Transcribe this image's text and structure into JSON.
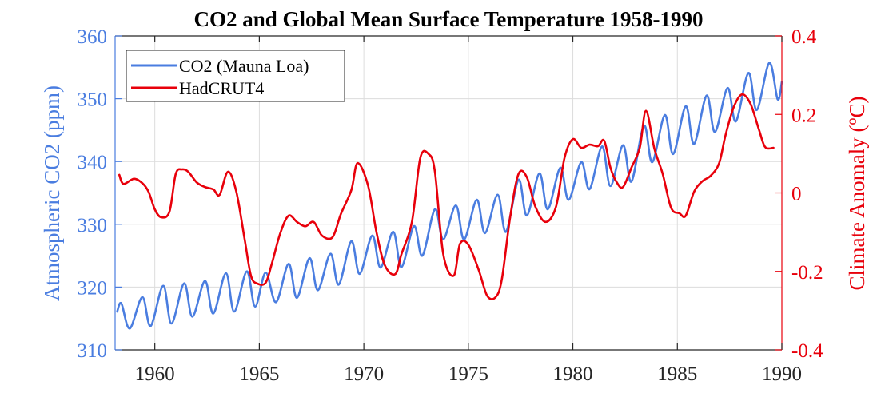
{
  "chart_data": {
    "type": "line",
    "title": "CO2 and Global Mean Surface Temperature 1958-1990",
    "xlabel": "",
    "xlim": [
      1958.1,
      1990
    ],
    "xticks": [
      1960,
      1965,
      1970,
      1975,
      1980,
      1985,
      1990
    ],
    "xtick_labels": [
      "1960",
      "1965",
      "1970",
      "1975",
      "1980",
      "1985",
      "1990"
    ],
    "grid": true,
    "legend": {
      "placement": "top-left",
      "entries": [
        "CO2 (Mauna Loa)",
        "HadCRUT4"
      ]
    },
    "y_left": {
      "label": "Atmospheric CO2 (ppm)",
      "ylim": [
        310,
        360
      ],
      "ticks": [
        310,
        320,
        330,
        340,
        350,
        360
      ],
      "tick_labels": [
        "310",
        "320",
        "330",
        "340",
        "350",
        "360"
      ],
      "color": "#4a7de0"
    },
    "y_right": {
      "label_main": "Climate Anomaly (",
      "label_sup": "o",
      "label_end": "C)",
      "ylim": [
        -0.4,
        0.4
      ],
      "ticks": [
        -0.4,
        -0.2,
        0,
        0.2,
        0.4
      ],
      "tick_labels": [
        "-0.4",
        "-0.2",
        "0",
        "0.2",
        "0.4"
      ],
      "color": "#e8000b"
    },
    "series": [
      {
        "name": "CO2 (Mauna Loa)",
        "axis": "left",
        "color": "#4a7de0",
        "x": [
          1958.2,
          1958.4,
          1958.8,
          1959.4,
          1959.8,
          1960.4,
          1960.8,
          1961.4,
          1961.8,
          1962.4,
          1962.8,
          1963.4,
          1963.8,
          1964.4,
          1964.8,
          1965.3,
          1965.8,
          1966.4,
          1966.8,
          1967.4,
          1967.8,
          1968.4,
          1968.8,
          1969.4,
          1969.8,
          1970.4,
          1970.8,
          1971.4,
          1971.8,
          1972.4,
          1972.8,
          1973.4,
          1973.8,
          1974.4,
          1974.8,
          1975.4,
          1975.8,
          1976.4,
          1976.8,
          1977.4,
          1977.8,
          1978.4,
          1978.8,
          1979.4,
          1979.8,
          1980.4,
          1980.8,
          1981.4,
          1981.8,
          1982.4,
          1982.8,
          1983.4,
          1983.8,
          1984.4,
          1984.8,
          1985.4,
          1985.8,
          1986.4,
          1986.8,
          1987.4,
          1987.8,
          1988.4,
          1988.8,
          1989.4,
          1989.8,
          1990.0
        ],
        "values": [
          316.1,
          317.4,
          313.4,
          318.4,
          313.8,
          320.2,
          314.2,
          320.6,
          315.3,
          321.0,
          315.8,
          322.2,
          316.1,
          322.5,
          316.9,
          322.3,
          317.6,
          323.7,
          318.3,
          324.6,
          319.5,
          325.3,
          320.4,
          327.3,
          322.1,
          328.2,
          323.1,
          328.8,
          323.2,
          329.7,
          325.0,
          332.4,
          327.6,
          333.0,
          327.6,
          333.9,
          328.6,
          334.7,
          328.8,
          337.1,
          331.4,
          338.1,
          332.4,
          339.0,
          333.9,
          339.9,
          335.6,
          342.4,
          336.1,
          342.6,
          336.8,
          345.7,
          339.9,
          347.4,
          341.2,
          348.8,
          342.8,
          350.5,
          344.7,
          351.7,
          346.4,
          354.1,
          348.2,
          355.7,
          349.9,
          352.7
        ]
      },
      {
        "name": "HadCRUT4",
        "axis": "right",
        "color": "#e8000b",
        "x": [
          1958.3,
          1958.5,
          1959.0,
          1959.4,
          1959.7,
          1960.0,
          1960.3,
          1960.7,
          1961.0,
          1961.3,
          1961.6,
          1962.0,
          1962.4,
          1962.8,
          1963.1,
          1963.5,
          1963.9,
          1964.3,
          1964.6,
          1964.9,
          1965.3,
          1965.6,
          1966.0,
          1966.4,
          1966.8,
          1967.2,
          1967.6,
          1968.0,
          1968.5,
          1968.9,
          1969.4,
          1969.7,
          1970.2,
          1970.6,
          1971.0,
          1971.5,
          1971.8,
          1972.3,
          1972.7,
          1973.1,
          1973.4,
          1973.8,
          1974.3,
          1974.6,
          1975.0,
          1975.5,
          1975.9,
          1976.3,
          1976.6,
          1977.0,
          1977.4,
          1977.8,
          1978.2,
          1978.7,
          1979.2,
          1979.6,
          1980.0,
          1980.4,
          1980.8,
          1981.2,
          1981.5,
          1981.8,
          1982.1,
          1982.4,
          1982.8,
          1983.2,
          1983.5,
          1983.9,
          1984.3,
          1984.7,
          1985.1,
          1985.4,
          1985.8,
          1986.2,
          1986.6,
          1987.0,
          1987.3,
          1987.7,
          1988.1,
          1988.5,
          1988.9,
          1989.2,
          1989.6
        ],
        "values": [
          0.046,
          0.023,
          0.036,
          0.025,
          0.003,
          -0.042,
          -0.062,
          -0.048,
          0.048,
          0.06,
          0.054,
          0.027,
          0.015,
          0.009,
          -0.005,
          0.054,
          0.003,
          -0.119,
          -0.211,
          -0.231,
          -0.229,
          -0.18,
          -0.103,
          -0.058,
          -0.074,
          -0.085,
          -0.074,
          -0.109,
          -0.113,
          -0.054,
          0.007,
          0.076,
          0.019,
          -0.099,
          -0.184,
          -0.207,
          -0.156,
          -0.074,
          0.089,
          0.099,
          0.054,
          -0.156,
          -0.211,
          -0.13,
          -0.132,
          -0.197,
          -0.262,
          -0.266,
          -0.221,
          -0.062,
          0.048,
          0.04,
          -0.034,
          -0.074,
          -0.034,
          0.089,
          0.137,
          0.115,
          0.123,
          0.119,
          0.133,
          0.064,
          0.027,
          0.015,
          0.064,
          0.115,
          0.209,
          0.113,
          0.048,
          -0.038,
          -0.052,
          -0.058,
          0.003,
          0.03,
          0.044,
          0.076,
          0.146,
          0.219,
          0.251,
          0.227,
          0.162,
          0.117,
          0.115
        ]
      }
    ]
  }
}
